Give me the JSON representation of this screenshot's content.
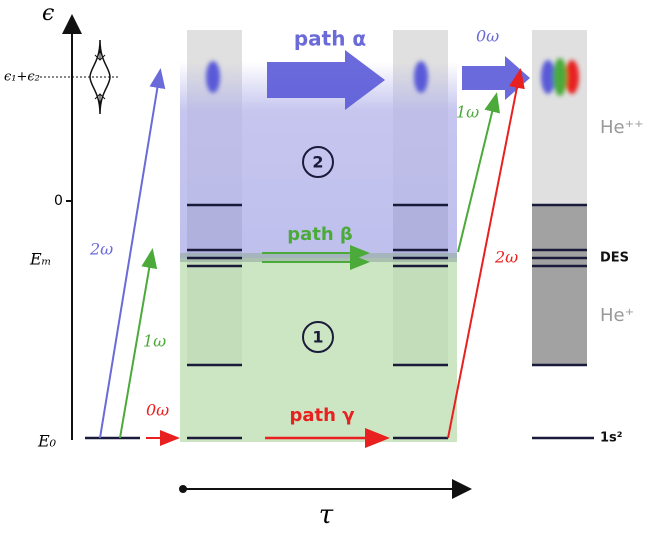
{
  "axis": {
    "energy_symbol": "ϵ",
    "peak_label": "ϵ₁+ϵ₂",
    "zero_label": "0",
    "em_label": "Eₘ",
    "e0_label": "E₀",
    "time_symbol": "τ"
  },
  "left_transitions": {
    "blue": "2ω",
    "green": "1ω",
    "red": "0ω"
  },
  "paths": {
    "alpha": "path α",
    "beta": "path β",
    "gamma": "path γ"
  },
  "regions": {
    "upper": "2",
    "lower": "1"
  },
  "right_transitions": {
    "blue": "0ω",
    "green": "1ω",
    "red": "2ω"
  },
  "states": {
    "double_ion": "He⁺⁺",
    "des": "DES",
    "single_ion": "He⁺",
    "ground": "1s²"
  }
}
